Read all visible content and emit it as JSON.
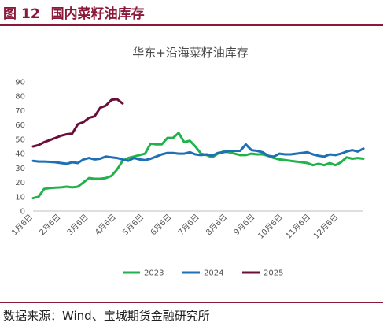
{
  "figure": {
    "label": "图",
    "number": "12",
    "title": "国内菜籽油库存"
  },
  "source_note": "数据来源：Wind、宝城期货金融研究所",
  "colors": {
    "accent": "#8b1a3a",
    "series_2023": "#22b24c",
    "series_2024": "#1f6fb5",
    "series_2025": "#6b0f3a"
  },
  "chart_data": {
    "type": "line",
    "title": "华东+沿海菜籽油库存",
    "xlabel": "",
    "ylabel": "",
    "ylim": [
      0,
      90
    ],
    "yticks": [
      "0",
      "10",
      "20",
      "30",
      "40",
      "50",
      "60",
      "70",
      "80",
      "90"
    ],
    "xticks": [
      "1月6日",
      "2月6日",
      "3月6日",
      "4月6日",
      "5月6日",
      "6月6日",
      "7月6日",
      "8月6日",
      "9月6日",
      "10月6日",
      "11月6日",
      "12月6日"
    ],
    "grid": false,
    "legend": "bottom",
    "x_unit": "week",
    "series": [
      {
        "name": "2023",
        "color": "#22b24c",
        "values": [
          9,
          10,
          15.5,
          16,
          16.3,
          16.5,
          17,
          16.5,
          17,
          20,
          23,
          22.5,
          22.5,
          23,
          24.5,
          29,
          35,
          37,
          38,
          39,
          40,
          47,
          46.5,
          46.5,
          51,
          51,
          54.5,
          48,
          49,
          45,
          40,
          39,
          37.5,
          40,
          41.5,
          41,
          40,
          39,
          39,
          40,
          39.5,
          39.5,
          38.5,
          37,
          36,
          35.5,
          35,
          34.5,
          34,
          33.5,
          32,
          33,
          32,
          33.5,
          32,
          34,
          37.5,
          36.5,
          37,
          36.5
        ]
      },
      {
        "name": "2024",
        "color": "#1f6fb5",
        "values": [
          35,
          34.5,
          34.5,
          34.3,
          34,
          33.5,
          33,
          34,
          33.5,
          36,
          37,
          36,
          36.5,
          38,
          37.5,
          37,
          36,
          35,
          37,
          36,
          35.5,
          36.5,
          38,
          39.5,
          40.5,
          40.5,
          40,
          40,
          41,
          39.5,
          39,
          39.5,
          38.5,
          40.5,
          41,
          42,
          42,
          42,
          46.5,
          42.5,
          42,
          41,
          38.5,
          38,
          40,
          39.5,
          39.5,
          40,
          40.5,
          41,
          39.5,
          38.5,
          38,
          39.5,
          39,
          40,
          41.5,
          42.5,
          41.5,
          43.5
        ]
      },
      {
        "name": "2025",
        "color": "#6b0f3a",
        "values": [
          45,
          46,
          48,
          49.5,
          51,
          52.5,
          53.5,
          54,
          60.5,
          62,
          65,
          66,
          72,
          73.5,
          77.5,
          78,
          75
        ]
      }
    ]
  }
}
